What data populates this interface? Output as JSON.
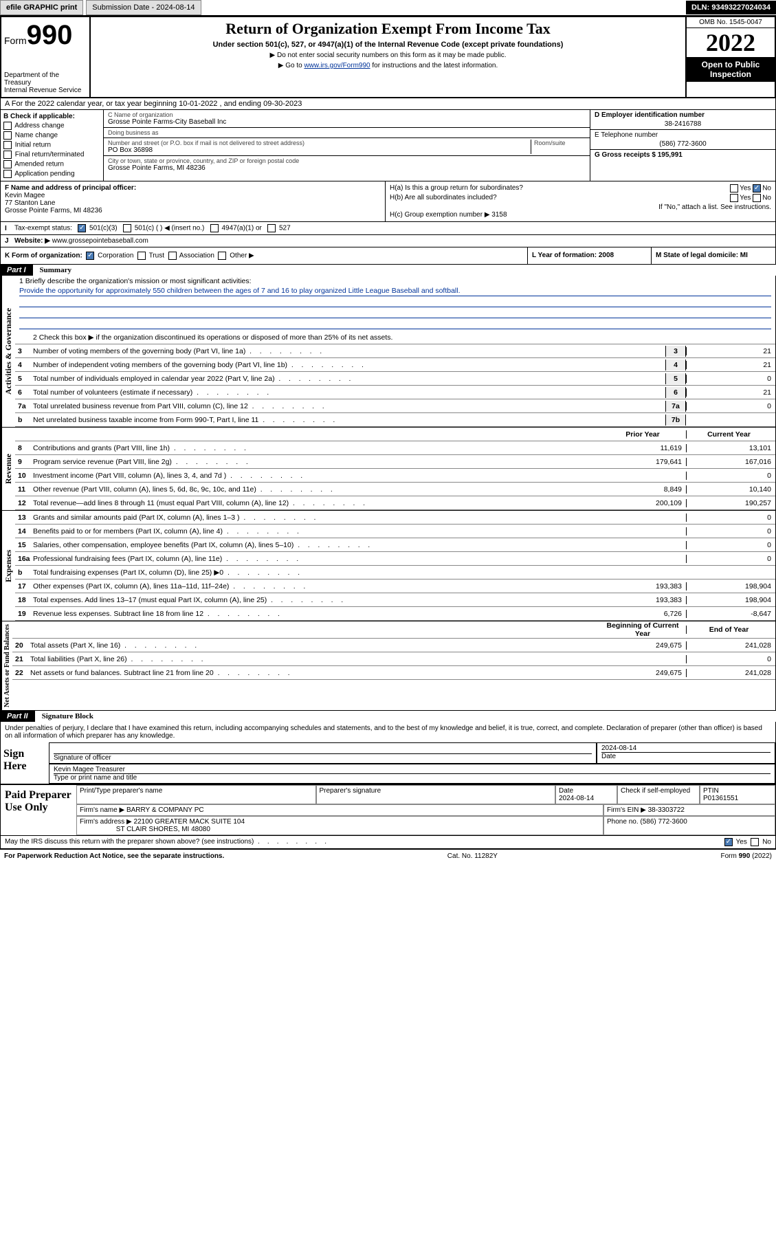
{
  "topbar": {
    "efile": "efile GRAPHIC print",
    "subdate_label": "Submission Date - 2024-08-14",
    "dln": "DLN: 93493227024034"
  },
  "header": {
    "form_word": "Form",
    "form_num": "990",
    "dept": "Department of the Treasury\nInternal Revenue Service",
    "title": "Return of Organization Exempt From Income Tax",
    "sub": "Under section 501(c), 527, or 4947(a)(1) of the Internal Revenue Code (except private foundations)",
    "note1": "▶ Do not enter social security numbers on this form as it may be made public.",
    "note2_pre": "▶ Go to ",
    "note2_link": "www.irs.gov/Form990",
    "note2_post": " for instructions and the latest information.",
    "omb": "OMB No. 1545-0047",
    "year": "2022",
    "open": "Open to Public Inspection"
  },
  "line_a": "A For the 2022 calendar year, or tax year beginning 10-01-2022   , and ending 09-30-2023",
  "col_b": {
    "hdr": "B Check if applicable:",
    "opts": [
      "Address change",
      "Name change",
      "Initial return",
      "Final return/terminated",
      "Amended return",
      "Application pending"
    ]
  },
  "col_c": {
    "name_lbl": "C Name of organization",
    "name": "Grosse Pointe Farms-City Baseball Inc",
    "dba_lbl": "Doing business as",
    "dba": "",
    "street_lbl": "Number and street (or P.O. box if mail is not delivered to street address)",
    "room_lbl": "Room/suite",
    "street": "PO Box 36898",
    "city_lbl": "City or town, state or province, country, and ZIP or foreign postal code",
    "city": "Grosse Pointe Farms, MI  48236"
  },
  "col_de": {
    "d_lbl": "D Employer identification number",
    "d_val": "38-2416788",
    "e_lbl": "E Telephone number",
    "e_val": "(586) 772-3600",
    "g_lbl": "G Gross receipts $ 195,991"
  },
  "sec_f": {
    "lbl": "F Name and address of principal officer:",
    "name": "Kevin Magee",
    "addr1": "77 Stanton Lane",
    "addr2": "Grosse Pointe Farms, MI  48236"
  },
  "sec_h": {
    "ha": "H(a)  Is this a group return for subordinates?",
    "ha_yes": "Yes",
    "ha_no": "No",
    "hb": "H(b)  Are all subordinates included?",
    "hb_yes": "Yes",
    "hb_no": "No",
    "hb_note": "If \"No,\" attach a list. See instructions.",
    "hc": "H(c)  Group exemption number ▶  3158"
  },
  "row_i": {
    "lbl": "I",
    "txt": "Tax-exempt status:",
    "o1": "501(c)(3)",
    "o2": "501(c) (  ) ◀ (insert no.)",
    "o3": "4947(a)(1) or",
    "o4": "527"
  },
  "row_j": {
    "lbl": "J",
    "txt": "Website: ▶ ",
    "val": "www.grossepointebaseball.com"
  },
  "row_k": {
    "k": "K Form of organization:",
    "opts": [
      "Corporation",
      "Trust",
      "Association",
      "Other ▶"
    ],
    "l": "L Year of formation: 2008",
    "m": "M State of legal domicile: MI"
  },
  "part1": {
    "num": "Part I",
    "title": "Summary"
  },
  "summary": {
    "q1": "1  Briefly describe the organization's mission or most significant activities:",
    "q1_text": "Provide the opportunity for approximately 550 children between the ages of 7 and 16 to play organized Little League Baseball and softball.",
    "q2": "2  Check this box ▶        if the organization discontinued its operations or disposed of more than 25% of its net assets.",
    "rows_gov": [
      {
        "n": "3",
        "desc": "Number of voting members of the governing body (Part VI, line 1a)",
        "box": "3",
        "val": "21"
      },
      {
        "n": "4",
        "desc": "Number of independent voting members of the governing body (Part VI, line 1b)",
        "box": "4",
        "val": "21"
      },
      {
        "n": "5",
        "desc": "Total number of individuals employed in calendar year 2022 (Part V, line 2a)",
        "box": "5",
        "val": "0"
      },
      {
        "n": "6",
        "desc": "Total number of volunteers (estimate if necessary)",
        "box": "6",
        "val": "21"
      },
      {
        "n": "7a",
        "desc": "Total unrelated business revenue from Part VIII, column (C), line 12",
        "box": "7a",
        "val": "0"
      },
      {
        "n": "b",
        "desc": "Net unrelated business taxable income from Form 990-T, Part I, line 11",
        "box": "7b",
        "val": ""
      }
    ],
    "col_hdr_prior": "Prior Year",
    "col_hdr_curr": "Current Year",
    "rows_rev": [
      {
        "n": "8",
        "desc": "Contributions and grants (Part VIII, line 1h)",
        "p": "11,619",
        "c": "13,101"
      },
      {
        "n": "9",
        "desc": "Program service revenue (Part VIII, line 2g)",
        "p": "179,641",
        "c": "167,016"
      },
      {
        "n": "10",
        "desc": "Investment income (Part VIII, column (A), lines 3, 4, and 7d )",
        "p": "",
        "c": "0"
      },
      {
        "n": "11",
        "desc": "Other revenue (Part VIII, column (A), lines 5, 6d, 8c, 9c, 10c, and 11e)",
        "p": "8,849",
        "c": "10,140"
      },
      {
        "n": "12",
        "desc": "Total revenue—add lines 8 through 11 (must equal Part VIII, column (A), line 12)",
        "p": "200,109",
        "c": "190,257"
      }
    ],
    "rows_exp": [
      {
        "n": "13",
        "desc": "Grants and similar amounts paid (Part IX, column (A), lines 1–3 )",
        "p": "",
        "c": "0"
      },
      {
        "n": "14",
        "desc": "Benefits paid to or for members (Part IX, column (A), line 4)",
        "p": "",
        "c": "0"
      },
      {
        "n": "15",
        "desc": "Salaries, other compensation, employee benefits (Part IX, column (A), lines 5–10)",
        "p": "",
        "c": "0"
      },
      {
        "n": "16a",
        "desc": "Professional fundraising fees (Part IX, column (A), line 11e)",
        "p": "",
        "c": "0"
      },
      {
        "n": "b",
        "desc": "Total fundraising expenses (Part IX, column (D), line 25) ▶0",
        "p": "",
        "c": "",
        "shade": true
      },
      {
        "n": "17",
        "desc": "Other expenses (Part IX, column (A), lines 11a–11d, 11f–24e)",
        "p": "193,383",
        "c": "198,904"
      },
      {
        "n": "18",
        "desc": "Total expenses. Add lines 13–17 (must equal Part IX, column (A), line 25)",
        "p": "193,383",
        "c": "198,904"
      },
      {
        "n": "19",
        "desc": "Revenue less expenses. Subtract line 18 from line 12",
        "p": "6,726",
        "c": "-8,647"
      }
    ],
    "col_hdr_beg": "Beginning of Current Year",
    "col_hdr_end": "End of Year",
    "rows_net": [
      {
        "n": "20",
        "desc": "Total assets (Part X, line 16)",
        "p": "249,675",
        "c": "241,028"
      },
      {
        "n": "21",
        "desc": "Total liabilities (Part X, line 26)",
        "p": "",
        "c": "0"
      },
      {
        "n": "22",
        "desc": "Net assets or fund balances. Subtract line 21 from line 20",
        "p": "249,675",
        "c": "241,028"
      }
    ],
    "vert_gov": "Activities & Governance",
    "vert_rev": "Revenue",
    "vert_exp": "Expenses",
    "vert_net": "Net Assets or Fund Balances"
  },
  "part2": {
    "num": "Part II",
    "title": "Signature Block"
  },
  "sig": {
    "decl": "Under penalties of perjury, I declare that I have examined this return, including accompanying schedules and statements, and to the best of my knowledge and belief, it is true, correct, and complete. Declaration of preparer (other than officer) is based on all information of which preparer has any knowledge.",
    "sign_here": "Sign Here",
    "sig_officer": "Signature of officer",
    "date_val": "2024-08-14",
    "date_lbl": "Date",
    "name_title": "Kevin Magee  Treasurer",
    "name_title_lbl": "Type or print name and title"
  },
  "paid": {
    "hdr": "Paid Preparer Use Only",
    "name_lbl": "Print/Type preparer's name",
    "sig_lbl": "Preparer's signature",
    "date_lbl": "Date",
    "date_val": "2024-08-14",
    "check_lbl": "Check         if self-employed",
    "ptin_lbl": "PTIN",
    "ptin_val": "P01361551",
    "firm_name_lbl": "Firm's name    ▶",
    "firm_name": "BARRY & COMPANY PC",
    "firm_ein_lbl": "Firm's EIN ▶",
    "firm_ein": "38-3303722",
    "firm_addr_lbl": "Firm's address ▶",
    "firm_addr1": "22100 GREATER MACK SUITE 104",
    "firm_addr2": "ST CLAIR SHORES, MI  48080",
    "phone_lbl": "Phone no.",
    "phone": "(586) 772-3600"
  },
  "may_irs": {
    "q": "May the IRS discuss this return with the preparer shown above? (see instructions)",
    "yes": "Yes",
    "no": "No"
  },
  "footer": {
    "l": "For Paperwork Reduction Act Notice, see the separate instructions.",
    "c": "Cat. No. 11282Y",
    "r": "Form 990 (2022)"
  }
}
